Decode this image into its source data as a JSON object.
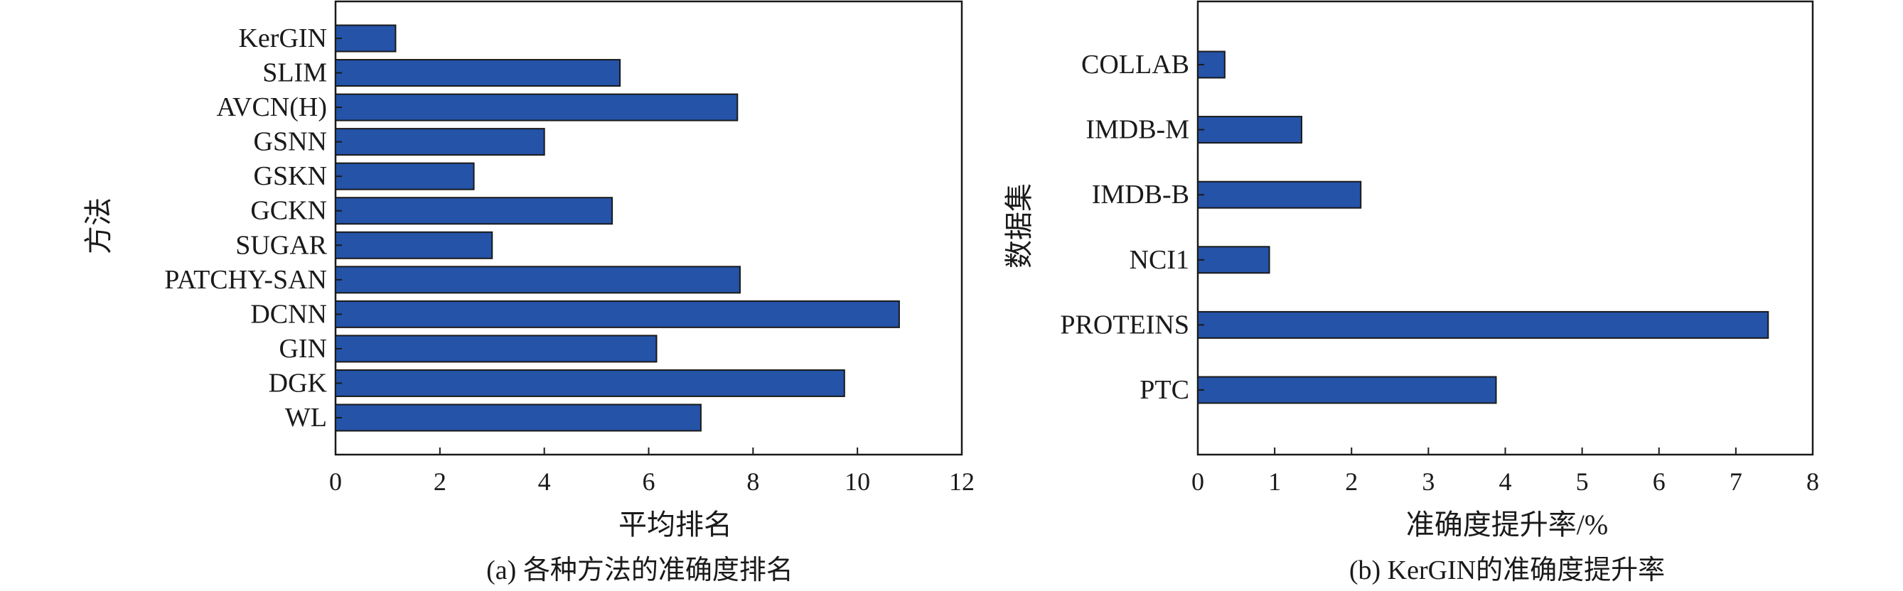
{
  "chart_data": [
    {
      "type": "bar",
      "orientation": "horizontal",
      "caption": "(a) 各种方法的准确度排名",
      "xlabel": "平均排名",
      "ylabel": "方法",
      "xlim": [
        0,
        12
      ],
      "xticks": [
        0,
        2,
        4,
        6,
        8,
        10,
        12
      ],
      "categories": [
        "KerGIN",
        "SLIM",
        "AVCN(H)",
        "GSNN",
        "GSKN",
        "GCKN",
        "SUGAR",
        "PATCHY-SAN",
        "DCNN",
        "GIN",
        "DGK",
        "WL"
      ],
      "values": [
        1.15,
        5.45,
        7.7,
        4.0,
        2.65,
        5.3,
        3.0,
        7.75,
        10.8,
        6.15,
        9.75,
        7.0
      ],
      "bar_color": "#2453a8",
      "grid": false
    },
    {
      "type": "bar",
      "orientation": "horizontal",
      "caption": "(b)  KerGIN的准确度提升率",
      "xlabel": "准确度提升率/%",
      "ylabel": "数据集",
      "xlim": [
        0,
        8
      ],
      "xticks": [
        0,
        1,
        2,
        3,
        4,
        5,
        6,
        7,
        8
      ],
      "categories": [
        "COLLAB",
        "IMDB-M",
        "IMDB-B",
        "NCI1",
        "PROTEINS",
        "PTC"
      ],
      "values": [
        0.35,
        1.35,
        2.12,
        0.93,
        7.42,
        3.88
      ],
      "bar_color": "#2453a8",
      "grid": false
    }
  ]
}
